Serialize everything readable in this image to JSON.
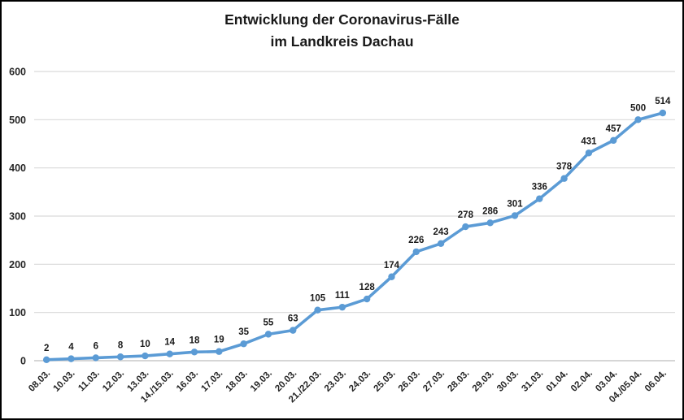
{
  "window": {
    "background_color": "#ffffff",
    "border_color": "#000000"
  },
  "chart_data": {
    "type": "line",
    "title": "Entwicklung der Coronavirus-Fälle im Landkreis Dachau",
    "title_lines": [
      "Entwicklung der Coronavirus-Fälle",
      "im Landkreis Dachau"
    ],
    "xlabel": "",
    "ylabel": "",
    "categories": [
      "08.03.",
      "10.03.",
      "11.03.",
      "12.03.",
      "13.03.",
      "14./15.03.",
      "16.03.",
      "17.03.",
      "18.03.",
      "19.03.",
      "20.03.",
      "21./22.03.",
      "23.03.",
      "24.03.",
      "25.03.",
      "26.03.",
      "27.03.",
      "28.03.",
      "29.03.",
      "30.03.",
      "31.03.",
      "01.04.",
      "02.04.",
      "03.04.",
      "04./05.04.",
      "06.04."
    ],
    "series": [
      {
        "name": "Coronavirus-Fälle",
        "values": [
          2,
          4,
          6,
          8,
          10,
          14,
          18,
          19,
          35,
          55,
          63,
          105,
          111,
          128,
          174,
          226,
          243,
          278,
          286,
          301,
          336,
          378,
          431,
          457,
          500,
          514
        ]
      }
    ],
    "ylim": [
      0,
      600
    ],
    "yticks": [
      0,
      100,
      200,
      300,
      400,
      500,
      600
    ],
    "grid": true,
    "legend_position": "none",
    "data_labels": true,
    "colors": {
      "series_color": "#5B9BD5",
      "gridline_color": "#DADADA",
      "axis_line_color": "#C9C9C9",
      "tick_text_color": "#262626",
      "data_label_color": "#1a1a1a",
      "title_color": "#1a1a1a"
    }
  }
}
